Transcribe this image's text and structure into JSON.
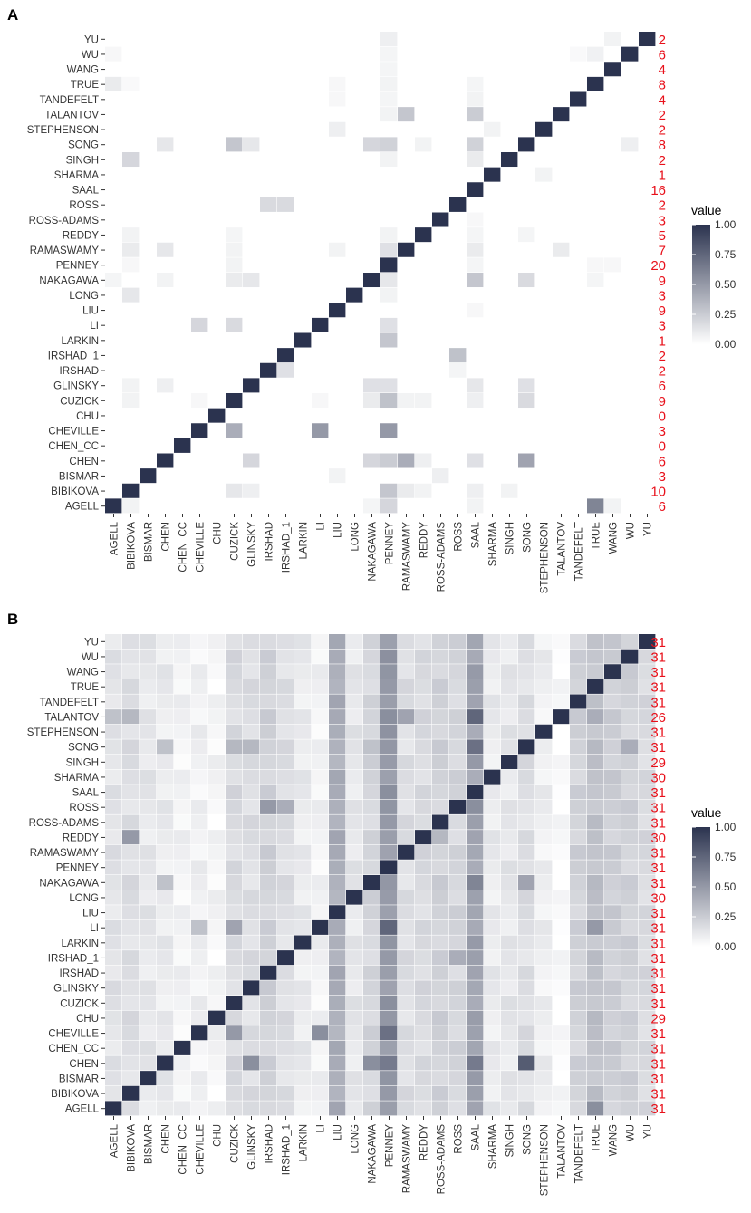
{
  "chart_data": [
    {
      "type": "heatmap",
      "panel_label": "A",
      "x_categories": [
        "AGELL",
        "BIBIKOVA",
        "BISMAR",
        "CHEN",
        "CHEN_CC",
        "CHEVILLE",
        "CHU",
        "CUZICK",
        "GLINSKY",
        "IRSHAD",
        "IRSHAD_1",
        "LARKIN",
        "LI",
        "LIU",
        "LONG",
        "NAKAGAWA",
        "PENNEY",
        "RAMASWAMY",
        "REDDY",
        "ROSS-ADAMS",
        "ROSS",
        "SAAL",
        "SHARMA",
        "SINGH",
        "SONG",
        "STEPHENSON",
        "TALANTOV",
        "TANDEFELT",
        "TRUE",
        "WANG",
        "WU",
        "YU"
      ],
      "y_categories_top_to_bottom": [
        "YU",
        "WU",
        "WANG",
        "TRUE",
        "TANDEFELT",
        "TALANTOV",
        "STEPHENSON",
        "SONG",
        "SINGH",
        "SHARMA",
        "SAAL",
        "ROSS",
        "ROSS-ADAMS",
        "REDDY",
        "RAMASWAMY",
        "PENNEY",
        "NAKAGAWA",
        "LONG",
        "LIU",
        "LI",
        "LARKIN",
        "IRSHAD_1",
        "IRSHAD",
        "GLINSKY",
        "CUZICK",
        "CHU",
        "CHEVILLE",
        "CHEN_CC",
        "CHEN",
        "BISMAR",
        "BIBIKOVA",
        "AGELL"
      ],
      "row_counts": [
        2,
        6,
        4,
        8,
        4,
        2,
        2,
        8,
        2,
        1,
        16,
        2,
        3,
        5,
        7,
        20,
        9,
        3,
        9,
        3,
        1,
        2,
        2,
        6,
        9,
        0,
        3,
        0,
        6,
        3,
        10,
        6
      ],
      "diagonal_value": 1.0,
      "offdiag": [
        {
          "row": "YU",
          "col": "PENNEY",
          "v": 0.08
        },
        {
          "row": "YU",
          "col": "WANG",
          "v": 0.06
        },
        {
          "row": "WU",
          "col": "AGELL",
          "v": 0.04
        },
        {
          "row": "WU",
          "col": "PENNEY",
          "v": 0.05
        },
        {
          "row": "WU",
          "col": "TRUE",
          "v": 0.07
        },
        {
          "row": "WU",
          "col": "TANDEFELT",
          "v": 0.03
        },
        {
          "row": "WANG",
          "col": "PENNEY",
          "v": 0.05
        },
        {
          "row": "TRUE",
          "col": "AGELL",
          "v": 0.1
        },
        {
          "row": "TRUE",
          "col": "BIBIKOVA",
          "v": 0.03
        },
        {
          "row": "TRUE",
          "col": "PENNEY",
          "v": 0.06
        },
        {
          "row": "TRUE",
          "col": "LIU",
          "v": 0.04
        },
        {
          "row": "TRUE",
          "col": "SAAL",
          "v": 0.05
        },
        {
          "row": "TANDEFELT",
          "col": "LIU",
          "v": 0.04
        },
        {
          "row": "TANDEFELT",
          "col": "PENNEY",
          "v": 0.05
        },
        {
          "row": "TANDEFELT",
          "col": "SAAL",
          "v": 0.06
        },
        {
          "row": "TALANTOV",
          "col": "RAMASWAMY",
          "v": 0.28
        },
        {
          "row": "TALANTOV",
          "col": "SAAL",
          "v": 0.25
        },
        {
          "row": "TALANTOV",
          "col": "PENNEY",
          "v": 0.06
        },
        {
          "row": "STEPHENSON",
          "col": "LIU",
          "v": 0.08
        },
        {
          "row": "STEPHENSON",
          "col": "SHARMA",
          "v": 0.06
        },
        {
          "row": "SONG",
          "col": "CHEN",
          "v": 0.12
        },
        {
          "row": "SONG",
          "col": "CUZICK",
          "v": 0.28
        },
        {
          "row": "SONG",
          "col": "GLINSKY",
          "v": 0.12
        },
        {
          "row": "SONG",
          "col": "NAKAGAWA",
          "v": 0.2
        },
        {
          "row": "SONG",
          "col": "PENNEY",
          "v": 0.22
        },
        {
          "row": "SONG",
          "col": "REDDY",
          "v": 0.06
        },
        {
          "row": "SONG",
          "col": "SAAL",
          "v": 0.22
        },
        {
          "row": "SONG",
          "col": "WU",
          "v": 0.08
        },
        {
          "row": "SINGH",
          "col": "BIBIKOVA",
          "v": 0.2
        },
        {
          "row": "SINGH",
          "col": "PENNEY",
          "v": 0.06
        },
        {
          "row": "SINGH",
          "col": "SAAL",
          "v": 0.1
        },
        {
          "row": "SHARMA",
          "col": "STEPHENSON",
          "v": 0.06
        },
        {
          "row": "ROSS",
          "col": "IRSHAD",
          "v": 0.18
        },
        {
          "row": "ROSS",
          "col": "IRSHAD_1",
          "v": 0.18
        },
        {
          "row": "ROSS-ADAMS",
          "col": "SAAL",
          "v": 0.04
        },
        {
          "row": "REDDY",
          "col": "BIBIKOVA",
          "v": 0.06
        },
        {
          "row": "REDDY",
          "col": "CUZICK",
          "v": 0.05
        },
        {
          "row": "REDDY",
          "col": "PENNEY",
          "v": 0.06
        },
        {
          "row": "REDDY",
          "col": "SAAL",
          "v": 0.05
        },
        {
          "row": "REDDY",
          "col": "SONG",
          "v": 0.05
        },
        {
          "row": "RAMASWAMY",
          "col": "BIBIKOVA",
          "v": 0.1
        },
        {
          "row": "RAMASWAMY",
          "col": "CHEN",
          "v": 0.12
        },
        {
          "row": "RAMASWAMY",
          "col": "CUZICK",
          "v": 0.06
        },
        {
          "row": "RAMASWAMY",
          "col": "LIU",
          "v": 0.06
        },
        {
          "row": "RAMASWAMY",
          "col": "PENNEY",
          "v": 0.15
        },
        {
          "row": "RAMASWAMY",
          "col": "SAAL",
          "v": 0.1
        },
        {
          "row": "RAMASWAMY",
          "col": "TALANTOV",
          "v": 0.1
        },
        {
          "row": "PENNEY",
          "col": "BIBIKOVA",
          "v": 0.04
        },
        {
          "row": "PENNEY",
          "col": "CUZICK",
          "v": 0.06
        },
        {
          "row": "PENNEY",
          "col": "SAAL",
          "v": 0.05
        },
        {
          "row": "PENNEY",
          "col": "TRUE",
          "v": 0.04
        },
        {
          "row": "PENNEY",
          "col": "WANG",
          "v": 0.04
        },
        {
          "row": "NAKAGAWA",
          "col": "AGELL",
          "v": 0.05
        },
        {
          "row": "NAKAGAWA",
          "col": "CHEN",
          "v": 0.06
        },
        {
          "row": "NAKAGAWA",
          "col": "CUZICK",
          "v": 0.1
        },
        {
          "row": "NAKAGAWA",
          "col": "GLINSKY",
          "v": 0.12
        },
        {
          "row": "NAKAGAWA",
          "col": "PENNEY",
          "v": 0.12
        },
        {
          "row": "NAKAGAWA",
          "col": "SAAL",
          "v": 0.28
        },
        {
          "row": "NAKAGAWA",
          "col": "SONG",
          "v": 0.18
        },
        {
          "row": "NAKAGAWA",
          "col": "TRUE",
          "v": 0.05
        },
        {
          "row": "LONG",
          "col": "BIBIKOVA",
          "v": 0.12
        },
        {
          "row": "LONG",
          "col": "PENNEY",
          "v": 0.06
        },
        {
          "row": "LIU",
          "col": "SAAL",
          "v": 0.04
        },
        {
          "row": "LI",
          "col": "CHEVILLE",
          "v": 0.2
        },
        {
          "row": "LI",
          "col": "CUZICK",
          "v": 0.18
        },
        {
          "row": "LI",
          "col": "PENNEY",
          "v": 0.15
        },
        {
          "row": "LARKIN",
          "col": "PENNEY",
          "v": 0.28
        },
        {
          "row": "IRSHAD_1",
          "col": "ROSS",
          "v": 0.3
        },
        {
          "row": "IRSHAD",
          "col": "IRSHAD_1",
          "v": 0.15
        },
        {
          "row": "IRSHAD",
          "col": "ROSS",
          "v": 0.05
        },
        {
          "row": "GLINSKY",
          "col": "BIBIKOVA",
          "v": 0.06
        },
        {
          "row": "GLINSKY",
          "col": "CHEN",
          "v": 0.08
        },
        {
          "row": "GLINSKY",
          "col": "NAKAGAWA",
          "v": 0.15
        },
        {
          "row": "GLINSKY",
          "col": "PENNEY",
          "v": 0.15
        },
        {
          "row": "GLINSKY",
          "col": "SAAL",
          "v": 0.12
        },
        {
          "row": "GLINSKY",
          "col": "SONG",
          "v": 0.15
        },
        {
          "row": "CUZICK",
          "col": "BIBIKOVA",
          "v": 0.06
        },
        {
          "row": "CUZICK",
          "col": "CHEVILLE",
          "v": 0.04
        },
        {
          "row": "CUZICK",
          "col": "LI",
          "v": 0.04
        },
        {
          "row": "CUZICK",
          "col": "NAKAGAWA",
          "v": 0.1
        },
        {
          "row": "CUZICK",
          "col": "PENNEY",
          "v": 0.3
        },
        {
          "row": "CUZICK",
          "col": "RAMASWAMY",
          "v": 0.06
        },
        {
          "row": "CUZICK",
          "col": "REDDY",
          "v": 0.06
        },
        {
          "row": "CUZICK",
          "col": "SAAL",
          "v": 0.08
        },
        {
          "row": "CUZICK",
          "col": "SONG",
          "v": 0.18
        },
        {
          "row": "CHEVILLE",
          "col": "CUZICK",
          "v": 0.4
        },
        {
          "row": "CHEVILLE",
          "col": "LI",
          "v": 0.5
        },
        {
          "row": "CHEVILLE",
          "col": "PENNEY",
          "v": 0.5
        },
        {
          "row": "CHEN",
          "col": "GLINSKY",
          "v": 0.2
        },
        {
          "row": "CHEN",
          "col": "NAKAGAWA",
          "v": 0.2
        },
        {
          "row": "CHEN",
          "col": "PENNEY",
          "v": 0.25
        },
        {
          "row": "CHEN",
          "col": "RAMASWAMY",
          "v": 0.4
        },
        {
          "row": "CHEN",
          "col": "REDDY",
          "v": 0.08
        },
        {
          "row": "CHEN",
          "col": "SAAL",
          "v": 0.15
        },
        {
          "row": "CHEN",
          "col": "SONG",
          "v": 0.45
        },
        {
          "row": "BISMAR",
          "col": "LIU",
          "v": 0.06
        },
        {
          "row": "BISMAR",
          "col": "ROSS-ADAMS",
          "v": 0.08
        },
        {
          "row": "BIBIKOVA",
          "col": "CUZICK",
          "v": 0.12
        },
        {
          "row": "BIBIKOVA",
          "col": "GLINSKY",
          "v": 0.08
        },
        {
          "row": "BIBIKOVA",
          "col": "PENNEY",
          "v": 0.28
        },
        {
          "row": "BIBIKOVA",
          "col": "RAMASWAMY",
          "v": 0.1
        },
        {
          "row": "BIBIKOVA",
          "col": "REDDY",
          "v": 0.06
        },
        {
          "row": "BIBIKOVA",
          "col": "SAAL",
          "v": 0.08
        },
        {
          "row": "BIBIKOVA",
          "col": "SINGH",
          "v": 0.06
        },
        {
          "row": "AGELL",
          "col": "BIBIKOVA",
          "v": 0.06
        },
        {
          "row": "AGELL",
          "col": "NAKAGAWA",
          "v": 0.05
        },
        {
          "row": "AGELL",
          "col": "PENNEY",
          "v": 0.2
        },
        {
          "row": "AGELL",
          "col": "SAAL",
          "v": 0.06
        },
        {
          "row": "AGELL",
          "col": "TRUE",
          "v": 0.6
        },
        {
          "row": "AGELL",
          "col": "WANG",
          "v": 0.06
        }
      ],
      "legend": {
        "title": "value",
        "ticks": [
          "1.00",
          "0.75",
          "0.50",
          "0.25",
          "0.00"
        ],
        "range": [
          0,
          1
        ]
      }
    },
    {
      "type": "heatmap",
      "panel_label": "B",
      "x_categories": [
        "AGELL",
        "BIBIKOVA",
        "BISMAR",
        "CHEN",
        "CHEN_CC",
        "CHEVILLE",
        "CHU",
        "CUZICK",
        "GLINSKY",
        "IRSHAD",
        "IRSHAD_1",
        "LARKIN",
        "LI",
        "LIU",
        "LONG",
        "NAKAGAWA",
        "PENNEY",
        "RAMASWAMY",
        "REDDY",
        "ROSS-ADAMS",
        "ROSS",
        "SAAL",
        "SHARMA",
        "SINGH",
        "SONG",
        "STEPHENSON",
        "TALANTOV",
        "TANDEFELT",
        "TRUE",
        "WANG",
        "WU",
        "YU"
      ],
      "y_categories_top_to_bottom": [
        "YU",
        "WU",
        "WANG",
        "TRUE",
        "TANDEFELT",
        "TALANTOV",
        "STEPHENSON",
        "SONG",
        "SINGH",
        "SHARMA",
        "SAAL",
        "ROSS",
        "ROSS-ADAMS",
        "REDDY",
        "RAMASWAMY",
        "PENNEY",
        "NAKAGAWA",
        "LONG",
        "LIU",
        "LI",
        "LARKIN",
        "IRSHAD_1",
        "IRSHAD",
        "GLINSKY",
        "CUZICK",
        "CHU",
        "CHEVILLE",
        "CHEN_CC",
        "CHEN",
        "BISMAR",
        "BIBIKOVA",
        "AGELL"
      ],
      "row_counts": [
        31,
        31,
        31,
        31,
        31,
        26,
        31,
        31,
        29,
        30,
        31,
        31,
        31,
        30,
        31,
        31,
        31,
        30,
        31,
        31,
        31,
        31,
        31,
        31,
        31,
        29,
        31,
        31,
        31,
        31,
        31,
        31
      ],
      "diagonal_value": 1.0,
      "column_base": [
        0.14,
        0.16,
        0.12,
        0.1,
        0.06,
        0.07,
        0.05,
        0.18,
        0.16,
        0.22,
        0.16,
        0.1,
        0.06,
        0.4,
        0.12,
        0.2,
        0.5,
        0.16,
        0.18,
        0.22,
        0.2,
        0.45,
        0.1,
        0.12,
        0.16,
        0.08,
        0.02,
        0.22,
        0.3,
        0.24,
        0.22,
        0.18
      ],
      "offdiag": [
        {
          "row": "CHEN",
          "col": "GLINSKY",
          "v": 0.55
        },
        {
          "row": "CHEN",
          "col": "NAKAGAWA",
          "v": 0.55
        },
        {
          "row": "CHEN",
          "col": "SONG",
          "v": 0.8
        },
        {
          "row": "CHEN",
          "col": "SAAL",
          "v": 0.65
        },
        {
          "row": "CHEN",
          "col": "PENNEY",
          "v": 0.65
        },
        {
          "row": "SONG",
          "col": "WU",
          "v": 0.4
        },
        {
          "row": "SONG",
          "col": "SAAL",
          "v": 0.7
        },
        {
          "row": "SONG",
          "col": "CHEN",
          "v": 0.3
        },
        {
          "row": "SONG",
          "col": "CUZICK",
          "v": 0.35
        },
        {
          "row": "SONG",
          "col": "GLINSKY",
          "v": 0.35
        },
        {
          "row": "SONG",
          "col": "NAKAGAWA",
          "v": 0.3
        },
        {
          "row": "TALANTOV",
          "col": "SAAL",
          "v": 0.75
        },
        {
          "row": "TALANTOV",
          "col": "RAMASWAMY",
          "v": 0.45
        },
        {
          "row": "TALANTOV",
          "col": "BIBIKOVA",
          "v": 0.35
        },
        {
          "row": "TALANTOV",
          "col": "AGELL",
          "v": 0.3
        },
        {
          "row": "TALANTOV",
          "col": "PENNEY",
          "v": 0.55
        },
        {
          "row": "TALANTOV",
          "col": "TRUE",
          "v": 0.4
        },
        {
          "row": "IRSHAD_1",
          "col": "ROSS",
          "v": 0.4
        },
        {
          "row": "ROSS",
          "col": "IRSHAD",
          "v": 0.5
        },
        {
          "row": "ROSS",
          "col": "IRSHAD_1",
          "v": 0.4
        },
        {
          "row": "CHEVILLE",
          "col": "CUZICK",
          "v": 0.5
        },
        {
          "row": "CHEVILLE",
          "col": "LI",
          "v": 0.55
        },
        {
          "row": "CHEVILLE",
          "col": "PENNEY",
          "v": 0.7
        },
        {
          "row": "LI",
          "col": "CHEVILLE",
          "v": 0.3
        },
        {
          "row": "LI",
          "col": "CUZICK",
          "v": 0.45
        },
        {
          "row": "LI",
          "col": "PENNEY",
          "v": 0.75
        },
        {
          "row": "LI",
          "col": "TRUE",
          "v": 0.5
        },
        {
          "row": "REDDY",
          "col": "BIBIKOVA",
          "v": 0.5
        },
        {
          "row": "REDDY",
          "col": "ROSS-ADAMS",
          "v": 0.35
        },
        {
          "row": "NAKAGAWA",
          "col": "SONG",
          "v": 0.45
        },
        {
          "row": "NAKAGAWA",
          "col": "CHEN",
          "v": 0.3
        },
        {
          "row": "NAKAGAWA",
          "col": "SAAL",
          "v": 0.6
        },
        {
          "row": "SINGH",
          "col": "SAAL",
          "v": 0.5
        },
        {
          "row": "SHARMA",
          "col": "SAAL",
          "v": 0.4
        },
        {
          "row": "ROSS",
          "col": "SAAL",
          "v": 0.55
        },
        {
          "row": "SAAL",
          "col": "PENNEY",
          "v": 0.55
        },
        {
          "row": "CUZICK",
          "col": "PENNEY",
          "v": 0.55
        },
        {
          "row": "AGELL",
          "col": "TRUE",
          "v": 0.55
        }
      ],
      "legend": {
        "title": "value",
        "ticks": [
          "1.00",
          "0.75",
          "0.50",
          "0.25",
          "0.00"
        ],
        "range": [
          0,
          1
        ]
      }
    }
  ],
  "styles": {
    "high_color": "#2b334f",
    "low_color": "#ffffff",
    "count_color": "#e8101a",
    "label_color": "#333333",
    "panel_label_color": "#000000"
  }
}
